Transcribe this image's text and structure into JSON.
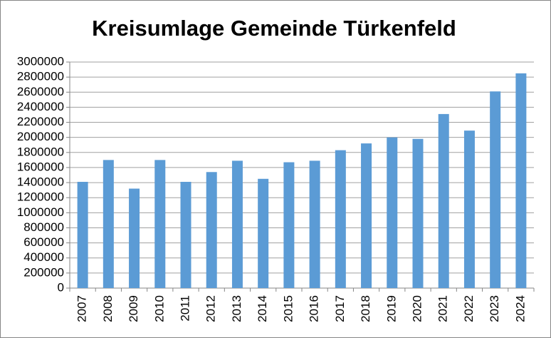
{
  "chart_data": {
    "type": "bar",
    "title": "Kreisumlage Gemeinde Türkenfeld",
    "categories": [
      "2007",
      "2008",
      "2009",
      "2010",
      "2011",
      "2012",
      "2013",
      "2014",
      "2015",
      "2016",
      "2017",
      "2018",
      "2019",
      "2020",
      "2021",
      "2022",
      "2023",
      "2024"
    ],
    "values": [
      1410000,
      1700000,
      1320000,
      1700000,
      1410000,
      1540000,
      1690000,
      1450000,
      1670000,
      1690000,
      1830000,
      1920000,
      2000000,
      1980000,
      2310000,
      2090000,
      2610000,
      2850000
    ],
    "color": "#5b9bd5",
    "ylim": [
      0,
      3000000
    ],
    "yticks": [
      0,
      200000,
      400000,
      600000,
      800000,
      1000000,
      1200000,
      1400000,
      1600000,
      1800000,
      2000000,
      2200000,
      2400000,
      2600000,
      2800000,
      3000000
    ],
    "grid": true
  }
}
